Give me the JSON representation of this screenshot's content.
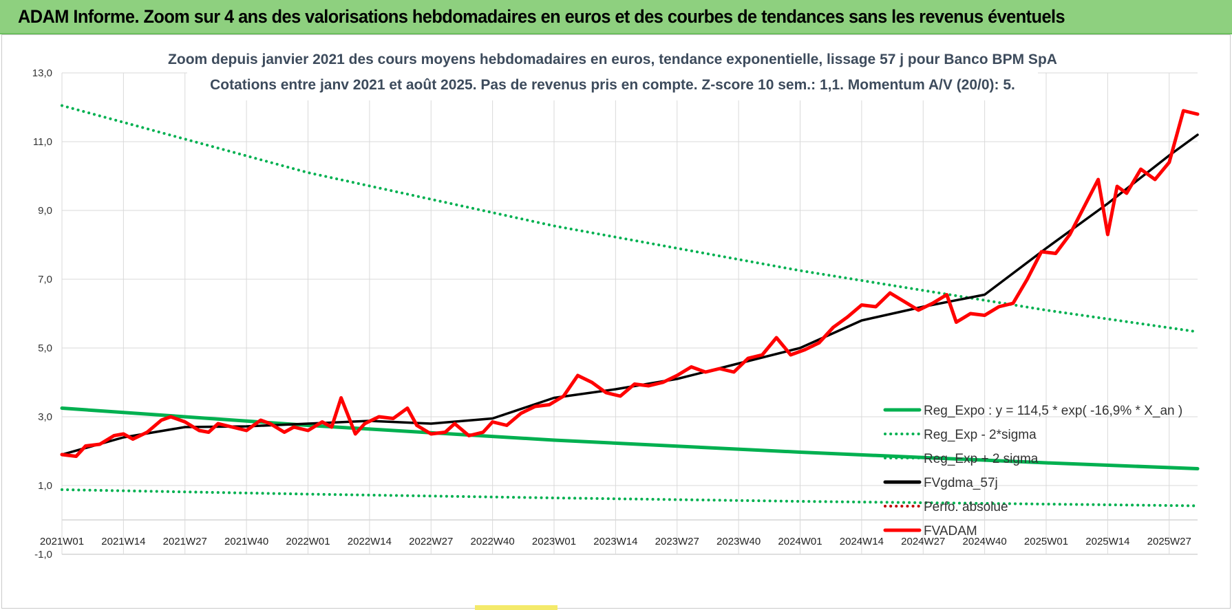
{
  "header": {
    "title": "ADAM Informe. Zoom sur 4 ans des valorisations hebdomadaires en euros et des courbes de tendances sans les revenus éventuels"
  },
  "colors": {
    "header_bg": "#8ed07f",
    "green": "#00b050",
    "black": "#000000",
    "red": "#ff0000",
    "dark_red": "#c00000"
  },
  "chart_data": {
    "type": "line",
    "title": "Zoom depuis janvier 2021 des cours moyens hebdomadaires en euros, tendance exponentielle, lissage 57 j pour Banco BPM SpA",
    "subtitle": "Cotations entre janv 2021 et août 2025. Pas de revenus pris en compte. Z-score 10 sem.: 1,1. Momentum A/V (20/0): 5.",
    "xlabel": "",
    "ylabel": "",
    "ylim": [
      -1,
      13
    ],
    "yticks": [
      "-1,0",
      "1,0",
      "3,0",
      "5,0",
      "7,0",
      "9,0",
      "11,0",
      "13,0"
    ],
    "x_tick_labels": [
      "2021W01",
      "2021W14",
      "2021W27",
      "2021W40",
      "2022W01",
      "2022W14",
      "2022W27",
      "2022W40",
      "2023W01",
      "2023W14",
      "2023W27",
      "2023W40",
      "2024W01",
      "2024W14",
      "2024W27",
      "2024W40",
      "2025W01",
      "2025W14",
      "2025W27"
    ],
    "grid": true,
    "legend_position": "lower-right",
    "series": [
      {
        "name": "Reg_Expo : y = 114,5 * exp( -16,9% *  X_an )",
        "style": "solid",
        "color": "#00b050",
        "points": [
          [
            0,
            3.25
          ],
          [
            52,
            2.75
          ],
          [
            104,
            2.32
          ],
          [
            156,
            1.97
          ],
          [
            208,
            1.66
          ],
          [
            240,
            1.49
          ]
        ]
      },
      {
        "name": "Reg_Exp - 2*sigma",
        "style": "dotted",
        "color": "#00b050",
        "points": [
          [
            0,
            0.88
          ],
          [
            52,
            0.75
          ],
          [
            104,
            0.64
          ],
          [
            156,
            0.54
          ],
          [
            208,
            0.46
          ],
          [
            240,
            0.41
          ]
        ]
      },
      {
        "name": "Reg_Exp + 2 sigma",
        "style": "dotted",
        "color": "#00b050",
        "points": [
          [
            0,
            12.05
          ],
          [
            52,
            10.1
          ],
          [
            104,
            8.55
          ],
          [
            156,
            7.25
          ],
          [
            208,
            6.1
          ],
          [
            240,
            5.47
          ]
        ]
      },
      {
        "name": "FVgdma_57j",
        "style": "solid",
        "color": "#000000",
        "points": [
          [
            0,
            1.9
          ],
          [
            13,
            2.4
          ],
          [
            26,
            2.7
          ],
          [
            39,
            2.72
          ],
          [
            52,
            2.8
          ],
          [
            65,
            2.88
          ],
          [
            78,
            2.8
          ],
          [
            91,
            2.95
          ],
          [
            104,
            3.55
          ],
          [
            117,
            3.8
          ],
          [
            130,
            4.1
          ],
          [
            143,
            4.55
          ],
          [
            156,
            5.0
          ],
          [
            169,
            5.8
          ],
          [
            182,
            6.2
          ],
          [
            195,
            6.55
          ],
          [
            208,
            7.9
          ],
          [
            221,
            9.2
          ],
          [
            234,
            10.6
          ],
          [
            240,
            11.2
          ]
        ]
      },
      {
        "name": "Perfo. absolue",
        "style": "dotted",
        "color": "#c00000",
        "points": []
      },
      {
        "name": "FVADAM",
        "style": "solid",
        "color": "#ff0000",
        "points": [
          [
            0,
            1.9
          ],
          [
            3,
            1.85
          ],
          [
            5,
            2.15
          ],
          [
            8,
            2.2
          ],
          [
            11,
            2.45
          ],
          [
            13,
            2.5
          ],
          [
            15,
            2.35
          ],
          [
            18,
            2.55
          ],
          [
            21,
            2.9
          ],
          [
            23,
            3.0
          ],
          [
            26,
            2.85
          ],
          [
            29,
            2.6
          ],
          [
            31,
            2.55
          ],
          [
            33,
            2.8
          ],
          [
            36,
            2.7
          ],
          [
            39,
            2.6
          ],
          [
            42,
            2.9
          ],
          [
            44,
            2.8
          ],
          [
            47,
            2.55
          ],
          [
            49,
            2.7
          ],
          [
            52,
            2.6
          ],
          [
            55,
            2.85
          ],
          [
            57,
            2.7
          ],
          [
            59,
            3.55
          ],
          [
            62,
            2.5
          ],
          [
            64,
            2.8
          ],
          [
            67,
            3.0
          ],
          [
            70,
            2.95
          ],
          [
            73,
            3.25
          ],
          [
            75,
            2.75
          ],
          [
            78,
            2.5
          ],
          [
            81,
            2.55
          ],
          [
            83,
            2.8
          ],
          [
            86,
            2.45
          ],
          [
            89,
            2.55
          ],
          [
            91,
            2.85
          ],
          [
            94,
            2.75
          ],
          [
            97,
            3.1
          ],
          [
            100,
            3.3
          ],
          [
            103,
            3.35
          ],
          [
            106,
            3.6
          ],
          [
            109,
            4.2
          ],
          [
            112,
            4.0
          ],
          [
            115,
            3.7
          ],
          [
            118,
            3.6
          ],
          [
            121,
            3.95
          ],
          [
            124,
            3.9
          ],
          [
            127,
            4.0
          ],
          [
            130,
            4.2
          ],
          [
            133,
            4.45
          ],
          [
            136,
            4.3
          ],
          [
            139,
            4.4
          ],
          [
            142,
            4.3
          ],
          [
            145,
            4.7
          ],
          [
            148,
            4.8
          ],
          [
            151,
            5.3
          ],
          [
            154,
            4.8
          ],
          [
            157,
            4.95
          ],
          [
            160,
            5.15
          ],
          [
            163,
            5.6
          ],
          [
            166,
            5.9
          ],
          [
            169,
            6.25
          ],
          [
            172,
            6.2
          ],
          [
            175,
            6.6
          ],
          [
            178,
            6.35
          ],
          [
            181,
            6.1
          ],
          [
            184,
            6.3
          ],
          [
            187,
            6.55
          ],
          [
            189,
            5.75
          ],
          [
            192,
            6.0
          ],
          [
            195,
            5.95
          ],
          [
            198,
            6.2
          ],
          [
            201,
            6.3
          ],
          [
            204,
            7.0
          ],
          [
            207,
            7.8
          ],
          [
            210,
            7.75
          ],
          [
            213,
            8.3
          ],
          [
            216,
            9.1
          ],
          [
            219,
            9.9
          ],
          [
            221,
            8.3
          ],
          [
            223,
            9.7
          ],
          [
            225,
            9.5
          ],
          [
            228,
            10.2
          ],
          [
            231,
            9.9
          ],
          [
            234,
            10.4
          ],
          [
            237,
            11.9
          ],
          [
            240,
            11.8
          ]
        ]
      }
    ]
  }
}
